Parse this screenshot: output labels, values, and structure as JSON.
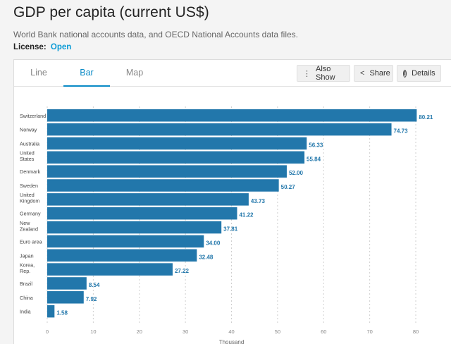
{
  "header": {
    "title": "GDP per capita (current US$)",
    "source": "World Bank national accounts data, and OECD National Accounts data files.",
    "license_label": "License:",
    "license_link": "Open"
  },
  "tabs": [
    {
      "label": "Line",
      "active": false
    },
    {
      "label": "Bar",
      "active": true
    },
    {
      "label": "Map",
      "active": false
    }
  ],
  "toolbar": {
    "also_show": "Also Show",
    "share": "Share",
    "details": "Details",
    "details_icon": "i"
  },
  "chart_data": {
    "type": "bar",
    "orientation": "horizontal",
    "bar_color": "#2277ab",
    "label_color": "#2277ab",
    "xlabel": "Thousand",
    "xlim": [
      0,
      80
    ],
    "xticks": [
      "0",
      "10",
      "20",
      "30",
      "40",
      "50",
      "60",
      "70",
      "80"
    ],
    "grid": "vertical-dashed",
    "categories": [
      [
        "Switzerland"
      ],
      [
        "Norway"
      ],
      [
        "Australia"
      ],
      [
        "United",
        "States"
      ],
      [
        "Denmark"
      ],
      [
        "Sweden"
      ],
      [
        "United",
        "Kingdom"
      ],
      [
        "Germany"
      ],
      [
        "New",
        "Zealand"
      ],
      [
        "Euro area"
      ],
      [
        "Japan"
      ],
      [
        "Korea,",
        "Rep."
      ],
      [
        "Brazil"
      ],
      [
        "China"
      ],
      [
        "India"
      ]
    ],
    "values": [
      80.21,
      74.73,
      56.33,
      55.84,
      52.0,
      50.27,
      43.73,
      41.22,
      37.81,
      34.0,
      32.48,
      27.22,
      8.54,
      7.92,
      1.58
    ],
    "data_labels": [
      "80.21",
      "74.73",
      "56.33",
      "55.84",
      "52.00",
      "50.27",
      "43.73",
      "41.22",
      "37.81",
      "34.00",
      "32.48",
      "27.22",
      "8.54",
      "7.92",
      "1.58"
    ]
  }
}
